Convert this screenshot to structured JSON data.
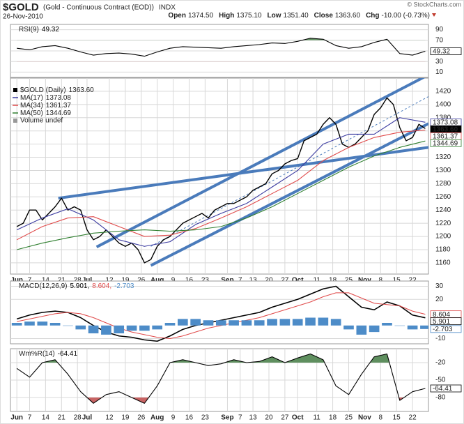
{
  "header": {
    "symbol": "$GOLD",
    "description": "(Gold - Continuous Contract (EOD))",
    "exchange": "INDX",
    "date": "26-Nov-2010",
    "copyright": "© StockCharts.com",
    "quote": [
      {
        "label": "Open",
        "value": "1374.50"
      },
      {
        "label": "High",
        "value": "1375.10"
      },
      {
        "label": "Low",
        "value": "1351.40"
      },
      {
        "label": "Close",
        "value": "1363.60"
      },
      {
        "label": "Chg",
        "value": "-10.00 (-0.73%)"
      }
    ]
  },
  "chart_data": [
    {
      "type": "line",
      "label": "RSI(9)",
      "xlim": [
        -2,
        129
      ],
      "ylim": [
        0,
        100
      ],
      "yticks": [
        10,
        30,
        50,
        70,
        90
      ],
      "x": [
        0,
        4,
        8,
        12,
        16,
        20,
        24,
        28,
        32,
        36,
        40,
        44,
        48,
        52,
        56,
        60,
        64,
        68,
        72,
        76,
        80,
        84,
        88,
        92,
        96,
        100,
        104,
        108,
        112,
        116,
        120,
        124,
        128
      ],
      "series": [
        {
          "color": "#000000",
          "tag": true,
          "fills": [
            {
              "above": 70,
              "color": "#5f8f5f"
            },
            {
              "below": 30,
              "color": "#c86464"
            }
          ],
          "values": [
            55,
            52,
            58,
            60,
            55,
            48,
            42,
            45,
            46,
            44,
            40,
            48,
            55,
            58,
            57,
            56,
            55,
            58,
            60,
            62,
            65,
            64,
            68,
            74,
            72,
            60,
            55,
            58,
            66,
            72,
            45,
            42,
            49.32
          ]
        }
      ]
    },
    {
      "type": "line",
      "xlim": [
        -2,
        129
      ],
      "ylim": [
        1143,
        1440
      ],
      "yticks": [
        1160,
        1180,
        1200,
        1220,
        1240,
        1260,
        1280,
        1300,
        1320,
        1340,
        1360,
        1380,
        1400,
        1420
      ],
      "xticks": [
        {
          "value": 0,
          "label": "Jun"
        },
        {
          "value": 4,
          "label": "7"
        },
        {
          "value": 9,
          "label": "14"
        },
        {
          "value": 14,
          "label": "21"
        },
        {
          "value": 19,
          "label": "28"
        },
        {
          "value": 22,
          "label": "Jul"
        },
        {
          "value": 29,
          "label": "12"
        },
        {
          "value": 34,
          "label": "19"
        },
        {
          "value": 39,
          "label": "26"
        },
        {
          "value": 44,
          "label": "Aug"
        },
        {
          "value": 49,
          "label": "9"
        },
        {
          "value": 54,
          "label": "16"
        },
        {
          "value": 59,
          "label": "23"
        },
        {
          "value": 66,
          "label": "Sep"
        },
        {
          "value": 70,
          "label": "7"
        },
        {
          "value": 74,
          "label": "13"
        },
        {
          "value": 79,
          "label": "20"
        },
        {
          "value": 84,
          "label": "27"
        },
        {
          "value": 88,
          "label": "Oct"
        },
        {
          "value": 94,
          "label": "11"
        },
        {
          "value": 99,
          "label": "18"
        },
        {
          "value": 104,
          "label": "25"
        },
        {
          "value": 109,
          "label": "Nov"
        },
        {
          "value": 114,
          "label": "8"
        },
        {
          "value": 119,
          "label": "15"
        },
        {
          "value": 124,
          "label": "22"
        }
      ],
      "volume_label": "Volume undef",
      "trendline_color": "#4a7bbb",
      "series": [
        {
          "name": "$GOLD (Daily)",
          "color": "#000000",
          "tag": true,
          "last_label": "1363.60",
          "width": 1.4,
          "x": [
            0,
            2,
            4,
            6,
            8,
            10,
            12,
            14,
            16,
            18,
            20,
            22,
            24,
            26,
            28,
            30,
            32,
            34,
            36,
            38,
            40,
            42,
            44,
            46,
            48,
            50,
            52,
            54,
            56,
            58,
            60,
            62,
            64,
            66,
            68,
            70,
            72,
            74,
            76,
            78,
            80,
            82,
            84,
            86,
            88,
            90,
            92,
            94,
            96,
            98,
            100,
            102,
            104,
            106,
            108,
            110,
            112,
            114,
            116,
            118,
            120,
            122,
            124,
            126,
            128
          ],
          "values": [
            1215,
            1220,
            1240,
            1240,
            1225,
            1235,
            1245,
            1258,
            1240,
            1245,
            1240,
            1210,
            1195,
            1200,
            1210,
            1200,
            1190,
            1185,
            1190,
            1180,
            1160,
            1165,
            1185,
            1195,
            1200,
            1210,
            1220,
            1225,
            1230,
            1235,
            1228,
            1240,
            1245,
            1250,
            1250,
            1255,
            1260,
            1270,
            1275,
            1280,
            1295,
            1300,
            1310,
            1315,
            1318,
            1345,
            1350,
            1355,
            1370,
            1380,
            1370,
            1340,
            1335,
            1340,
            1350,
            1360,
            1385,
            1395,
            1410,
            1400,
            1365,
            1345,
            1350,
            1370,
            1363.6
          ]
        },
        {
          "name": "MA(17)",
          "color": "#3a3aa0",
          "tag": true,
          "x": [
            0,
            8,
            16,
            24,
            32,
            40,
            48,
            56,
            64,
            72,
            80,
            88,
            96,
            104,
            112,
            120,
            128
          ],
          "values": [
            1210,
            1228,
            1242,
            1225,
            1195,
            1185,
            1192,
            1218,
            1235,
            1250,
            1275,
            1300,
            1340,
            1355,
            1355,
            1380,
            1373.08
          ]
        },
        {
          "name": "MA(34)",
          "color": "#e04a4a",
          "tag": true,
          "x": [
            0,
            8,
            16,
            24,
            32,
            40,
            48,
            56,
            64,
            72,
            80,
            88,
            96,
            104,
            112,
            120,
            128
          ],
          "values": [
            1195,
            1215,
            1228,
            1230,
            1215,
            1200,
            1202,
            1212,
            1228,
            1245,
            1265,
            1285,
            1315,
            1335,
            1350,
            1358,
            1361.37
          ]
        },
        {
          "name": "MA(50)",
          "color": "#2f7f2f",
          "tag": true,
          "x": [
            0,
            8,
            16,
            24,
            32,
            40,
            48,
            56,
            64,
            72,
            80,
            88,
            96,
            104,
            112,
            120,
            128
          ],
          "values": [
            1180,
            1190,
            1198,
            1205,
            1208,
            1210,
            1208,
            1210,
            1215,
            1228,
            1245,
            1265,
            1285,
            1305,
            1322,
            1335,
            1344.69
          ]
        }
      ],
      "trendlines": [
        {
          "x": [
            25,
            129
          ],
          "values": [
            1184,
            1445
          ]
        },
        {
          "x": [
            42,
            129
          ],
          "values": [
            1156,
            1371
          ]
        },
        {
          "x": [
            13,
            129
          ],
          "values": [
            1258,
            1335
          ]
        },
        {
          "x": [
            42,
            129
          ],
          "values": [
            1185,
            1412
          ],
          "dashed": true
        }
      ]
    },
    {
      "type": "line",
      "label": "MACD(12,26,9)",
      "legend_separator": ",",
      "xlim": [
        -2,
        129
      ],
      "ylim": [
        -14,
        34
      ],
      "yticks": [
        -10,
        20,
        30
      ],
      "x": [
        0,
        4,
        8,
        12,
        16,
        20,
        24,
        28,
        32,
        36,
        40,
        44,
        48,
        52,
        56,
        60,
        64,
        68,
        72,
        76,
        80,
        84,
        88,
        92,
        96,
        100,
        104,
        108,
        112,
        116,
        120,
        124,
        128
      ],
      "series": [
        {
          "color": "#000000",
          "tag": true,
          "width": 1.6,
          "values": [
            5,
            8,
            10,
            11,
            10,
            6,
            0,
            -5,
            -8,
            -9,
            -11,
            -12,
            -8,
            -3,
            0,
            2,
            4,
            6,
            8,
            10,
            14,
            17,
            20,
            24,
            28,
            30,
            22,
            14,
            12,
            18,
            15,
            8,
            5.901
          ]
        },
        {
          "color": "#e04a4a",
          "tag": true,
          "values": [
            3,
            5,
            7,
            9,
            10,
            9,
            6,
            2,
            -2,
            -5,
            -7,
            -9,
            -10,
            -8,
            -5,
            -2,
            0,
            2,
            4,
            6,
            9,
            12,
            15,
            18,
            22,
            25,
            25,
            21,
            17,
            16,
            15,
            11,
            8.604
          ]
        },
        {
          "color": "#4d8cc8",
          "tag": true,
          "style": "histogram",
          "values": [
            2,
            3,
            3,
            2,
            0,
            -3,
            -6,
            -7,
            -6,
            -4,
            -4,
            -3,
            2,
            5,
            5,
            4,
            4,
            4,
            4,
            4,
            5,
            5,
            5,
            6,
            6,
            5,
            -3,
            -7,
            -5,
            2,
            0,
            -3,
            -2.703
          ]
        }
      ]
    },
    {
      "type": "line",
      "label": "Wm%R(14)",
      "xlim": [
        -2,
        129
      ],
      "ylim": [
        -104,
        4
      ],
      "yticks": [
        -20,
        -50,
        -80
      ],
      "xticks": [
        {
          "value": 0,
          "label": "Jun"
        },
        {
          "value": 4,
          "label": "7"
        },
        {
          "value": 9,
          "label": "14"
        },
        {
          "value": 14,
          "label": "21"
        },
        {
          "value": 19,
          "label": "28"
        },
        {
          "value": 22,
          "label": "Jul"
        },
        {
          "value": 29,
          "label": "12"
        },
        {
          "value": 34,
          "label": "19"
        },
        {
          "value": 39,
          "label": "26"
        },
        {
          "value": 44,
          "label": "Aug"
        },
        {
          "value": 49,
          "label": "9"
        },
        {
          "value": 54,
          "label": "16"
        },
        {
          "value": 59,
          "label": "23"
        },
        {
          "value": 66,
          "label": "Sep"
        },
        {
          "value": 70,
          "label": "7"
        },
        {
          "value": 74,
          "label": "13"
        },
        {
          "value": 79,
          "label": "20"
        },
        {
          "value": 84,
          "label": "27"
        },
        {
          "value": 88,
          "label": "Oct"
        },
        {
          "value": 94,
          "label": "11"
        },
        {
          "value": 99,
          "label": "18"
        },
        {
          "value": 104,
          "label": "25"
        },
        {
          "value": 109,
          "label": "Nov"
        },
        {
          "value": 114,
          "label": "8"
        },
        {
          "value": 119,
          "label": "15"
        },
        {
          "value": 124,
          "label": "22"
        }
      ],
      "x": [
        0,
        4,
        8,
        12,
        16,
        20,
        24,
        28,
        32,
        36,
        40,
        44,
        48,
        52,
        56,
        60,
        64,
        68,
        72,
        76,
        80,
        84,
        88,
        92,
        96,
        100,
        104,
        108,
        112,
        116,
        120,
        124,
        128
      ],
      "series": [
        {
          "color": "#000000",
          "tag": true,
          "fills": [
            {
              "above": -20,
              "color": "#5f8f5f"
            },
            {
              "below": -80,
              "color": "#c86464"
            }
          ],
          "values": [
            -30,
            -45,
            -20,
            -15,
            -40,
            -70,
            -90,
            -75,
            -70,
            -80,
            -90,
            -60,
            -20,
            -15,
            -20,
            -25,
            -22,
            -15,
            -20,
            -18,
            -10,
            -20,
            -12,
            -5,
            -15,
            -60,
            -75,
            -40,
            -10,
            -5,
            -85,
            -70,
            -64.41
          ]
        }
      ]
    }
  ]
}
